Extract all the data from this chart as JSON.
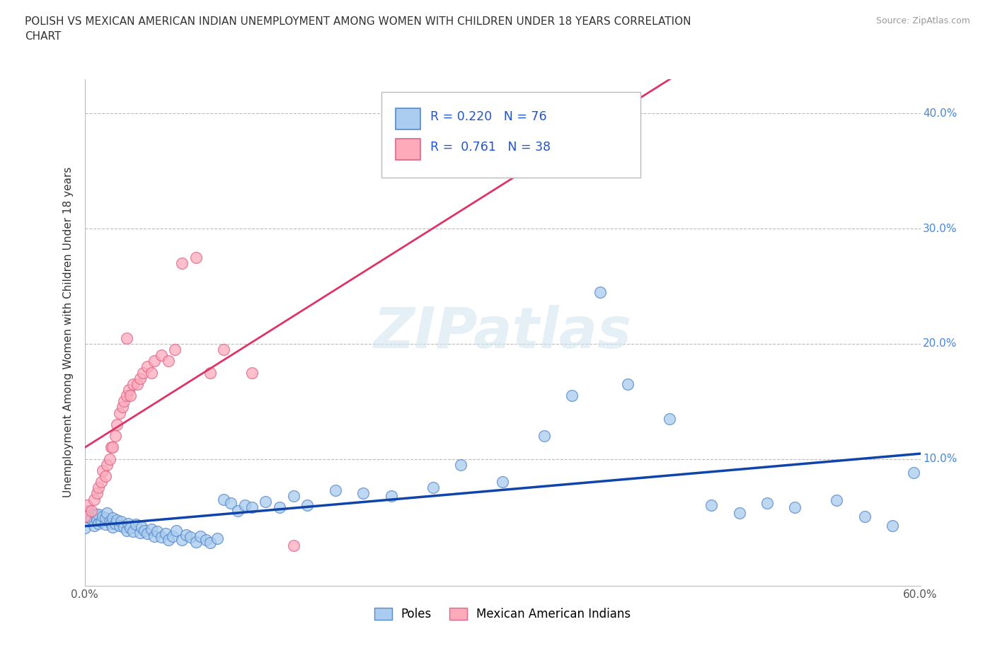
{
  "title": "POLISH VS MEXICAN AMERICAN INDIAN UNEMPLOYMENT AMONG WOMEN WITH CHILDREN UNDER 18 YEARS CORRELATION\nCHART",
  "source": "Source: ZipAtlas.com",
  "ylabel": "Unemployment Among Women with Children Under 18 years",
  "watermark": "ZIPatlas",
  "xlim": [
    0.0,
    0.6
  ],
  "ylim": [
    -0.01,
    0.43
  ],
  "series1_color": "#aaccee",
  "series1_edge": "#5588cc",
  "series1_label": "Poles",
  "series1_R": 0.22,
  "series1_N": 76,
  "series2_color": "#ffaabb",
  "series2_edge": "#dd6688",
  "series2_label": "Mexican American Indians",
  "series2_R": 0.761,
  "series2_N": 38,
  "trend1_color": "#1144aa",
  "trend2_color": "#dd3366",
  "legend_R1_text": "R = 0.220",
  "legend_N1_text": "N = 76",
  "legend_R2_text": "R =  0.761",
  "legend_N2_text": "N = 38",
  "poles_x": [
    0.0,
    0.002,
    0.003,
    0.005,
    0.007,
    0.008,
    0.009,
    0.01,
    0.01,
    0.012,
    0.013,
    0.015,
    0.015,
    0.016,
    0.018,
    0.019,
    0.02,
    0.02,
    0.022,
    0.023,
    0.025,
    0.026,
    0.028,
    0.03,
    0.031,
    0.033,
    0.035,
    0.037,
    0.04,
    0.041,
    0.043,
    0.045,
    0.048,
    0.05,
    0.052,
    0.055,
    0.058,
    0.06,
    0.063,
    0.066,
    0.07,
    0.073,
    0.076,
    0.08,
    0.083,
    0.087,
    0.09,
    0.095,
    0.1,
    0.105,
    0.11,
    0.115,
    0.12,
    0.13,
    0.14,
    0.15,
    0.16,
    0.18,
    0.2,
    0.22,
    0.25,
    0.27,
    0.3,
    0.33,
    0.35,
    0.37,
    0.39,
    0.42,
    0.45,
    0.47,
    0.49,
    0.51,
    0.54,
    0.56,
    0.58,
    0.595
  ],
  "poles_y": [
    0.04,
    0.05,
    0.055,
    0.048,
    0.042,
    0.052,
    0.047,
    0.044,
    0.052,
    0.046,
    0.05,
    0.043,
    0.049,
    0.053,
    0.046,
    0.044,
    0.041,
    0.049,
    0.044,
    0.047,
    0.042,
    0.046,
    0.041,
    0.038,
    0.044,
    0.04,
    0.037,
    0.043,
    0.036,
    0.041,
    0.038,
    0.035,
    0.039,
    0.033,
    0.037,
    0.032,
    0.035,
    0.03,
    0.033,
    0.038,
    0.03,
    0.034,
    0.032,
    0.028,
    0.033,
    0.03,
    0.027,
    0.031,
    0.065,
    0.062,
    0.055,
    0.06,
    0.058,
    0.063,
    0.058,
    0.068,
    0.06,
    0.073,
    0.07,
    0.068,
    0.075,
    0.095,
    0.08,
    0.12,
    0.155,
    0.245,
    0.165,
    0.135,
    0.06,
    0.053,
    0.062,
    0.058,
    0.064,
    0.05,
    0.042,
    0.088
  ],
  "mexican_x": [
    0.0,
    0.002,
    0.005,
    0.007,
    0.009,
    0.01,
    0.012,
    0.013,
    0.015,
    0.016,
    0.018,
    0.019,
    0.02,
    0.022,
    0.023,
    0.025,
    0.027,
    0.028,
    0.03,
    0.032,
    0.033,
    0.035,
    0.038,
    0.04,
    0.042,
    0.045,
    0.048,
    0.05,
    0.055,
    0.06,
    0.065,
    0.07,
    0.08,
    0.09,
    0.1,
    0.12,
    0.15,
    0.03
  ],
  "mexican_y": [
    0.05,
    0.06,
    0.055,
    0.065,
    0.07,
    0.075,
    0.08,
    0.09,
    0.085,
    0.095,
    0.1,
    0.11,
    0.11,
    0.12,
    0.13,
    0.14,
    0.145,
    0.15,
    0.155,
    0.16,
    0.155,
    0.165,
    0.165,
    0.17,
    0.175,
    0.18,
    0.175,
    0.185,
    0.19,
    0.185,
    0.195,
    0.27,
    0.275,
    0.175,
    0.195,
    0.175,
    0.025,
    0.205
  ]
}
